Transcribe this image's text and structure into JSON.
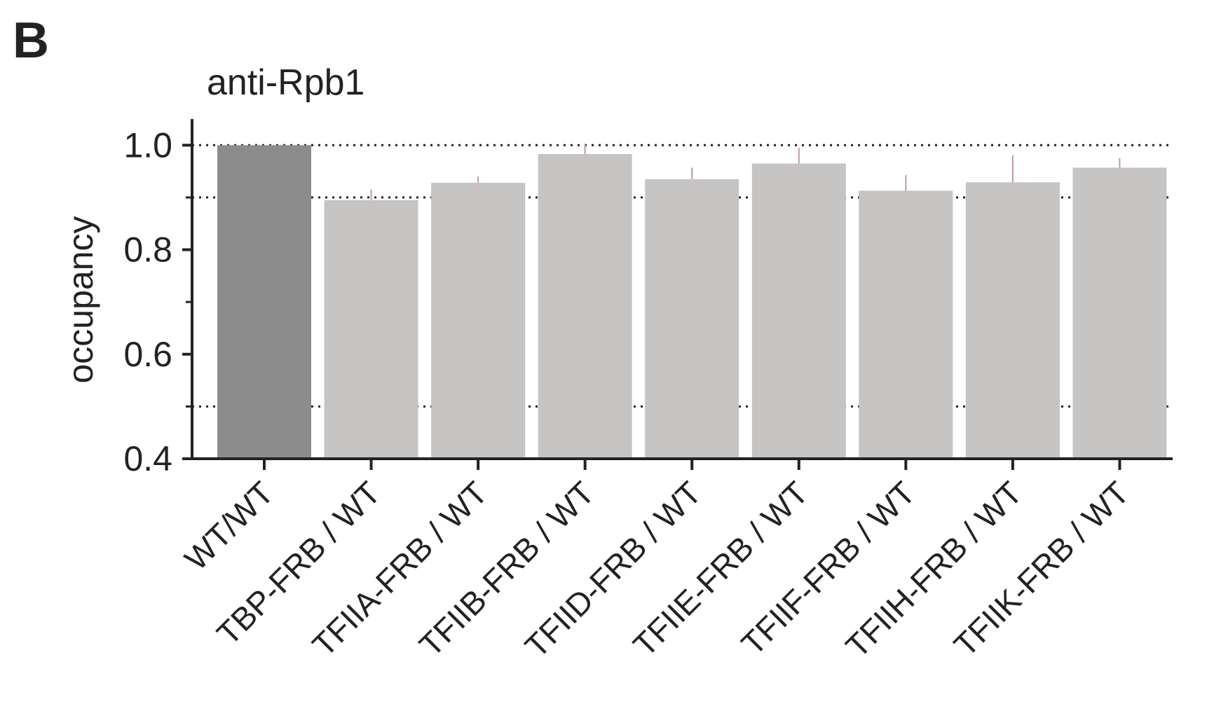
{
  "panel": {
    "letter": "B"
  },
  "chart_data": {
    "type": "bar",
    "title": "anti-Rpb1",
    "xlabel": "",
    "ylabel": "occupancy",
    "ylim": [
      0.4,
      1.05
    ],
    "yticks": [
      0.4,
      0.6,
      0.8,
      1.0
    ],
    "ytick_labels": [
      "0.4",
      "0.6",
      "0.8",
      "1.0"
    ],
    "minor_yticks": [
      0.5,
      0.7,
      0.9
    ],
    "reference_lines": [
      0.5,
      0.9,
      1.0
    ],
    "categories": [
      "WT/WT",
      "TBP-FRB / WT",
      "TFIIA-FRB / WT",
      "TFIIB-FRB / WT",
      "TFIID-FRB / WT",
      "TFIIE-FRB / WT",
      "TFIIF-FRB / WT",
      "TFIIH-FRB / WT",
      "TFIIK-FRB / WT"
    ],
    "values": [
      1.0,
      0.895,
      0.928,
      0.983,
      0.935,
      0.965,
      0.913,
      0.929,
      0.957
    ],
    "errors": [
      0.0,
      0.02,
      0.012,
      0.02,
      0.022,
      0.03,
      0.03,
      0.052,
      0.018
    ],
    "colors": {
      "reference_bar": "#8c8c8c",
      "bar": "#c5c4c3",
      "error_bar": "#c09a9a",
      "axis": "#222222"
    }
  }
}
